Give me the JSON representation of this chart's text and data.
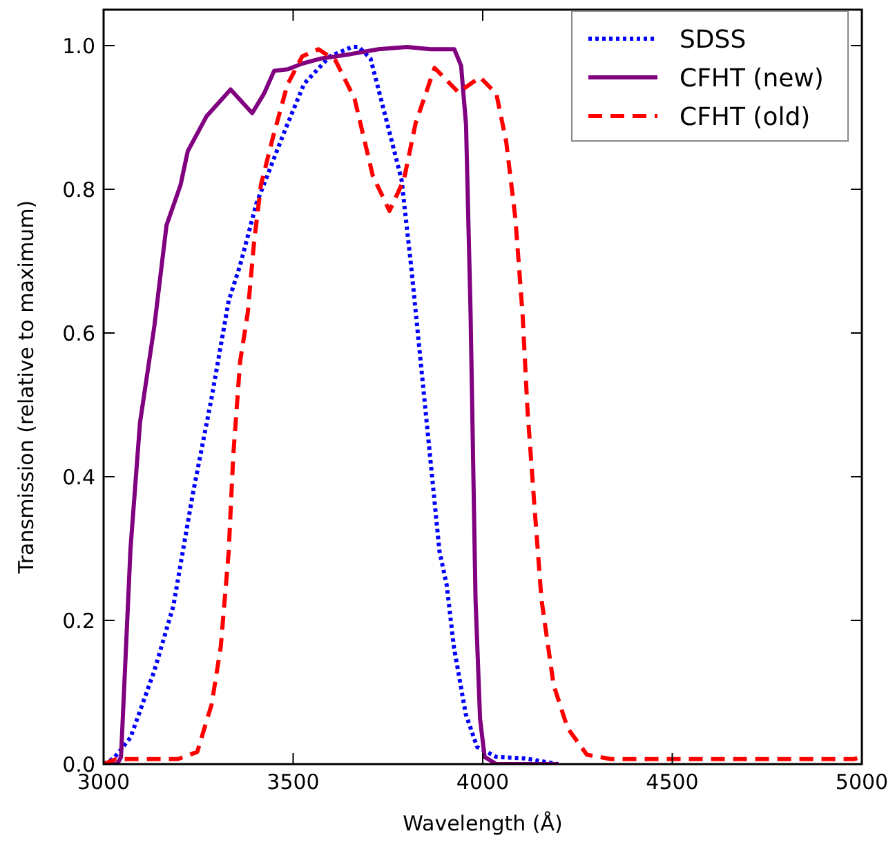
{
  "chart_data": {
    "type": "line",
    "xlabel": "Wavelength (Å)",
    "ylabel": "Transmission (relative to maximum)",
    "xlim": [
      3000,
      5000
    ],
    "ylim": [
      0,
      1.05
    ],
    "xticks": [
      3000,
      3500,
      4000,
      4500,
      5000
    ],
    "yticks": [
      {
        "value": 0,
        "label": "0.0"
      },
      {
        "value": 0.2,
        "label": "0.2"
      },
      {
        "value": 0.4,
        "label": "0.4"
      },
      {
        "value": 0.6,
        "label": "0.6"
      },
      {
        "value": 0.8,
        "label": "0.8"
      },
      {
        "value": 1,
        "label": "1.0"
      }
    ],
    "grid": false,
    "legend": "top right",
    "series": [
      {
        "name": "SDSS",
        "color": "#0000ff",
        "line_style": "dotted",
        "x": [
          3000,
          3027,
          3071,
          3134,
          3184,
          3235,
          3285,
          3330,
          3360,
          3403,
          3479,
          3529,
          3597,
          3654,
          3673,
          3704,
          3748,
          3786,
          3811,
          3836,
          3861,
          3886,
          3905,
          3924,
          3955,
          3985,
          4036,
          4111,
          4199
        ],
        "values": [
          0,
          0.008,
          0.037,
          0.13,
          0.22,
          0.375,
          0.51,
          0.645,
          0.694,
          0.78,
          0.883,
          0.947,
          0.985,
          0.998,
          0.998,
          0.982,
          0.892,
          0.813,
          0.694,
          0.562,
          0.429,
          0.296,
          0.249,
          0.163,
          0.07,
          0.024,
          0.01,
          0.008,
          0
        ]
      },
      {
        "name": "CFHT (new)",
        "color": "#800080",
        "line_style": "solid",
        "x": [
          3000,
          3036,
          3046,
          3071,
          3096,
          3134,
          3166,
          3203,
          3222,
          3272,
          3335,
          3392,
          3423,
          3450,
          3486,
          3524,
          3574,
          3650,
          3725,
          3800,
          3862,
          3925,
          3943,
          3956,
          3968,
          3981,
          3993,
          4005,
          4036,
          4200
        ],
        "values": [
          0,
          0,
          0.01,
          0.3,
          0.475,
          0.61,
          0.75,
          0.806,
          0.853,
          0.902,
          0.939,
          0.906,
          0.933,
          0.965,
          0.967,
          0.975,
          0.982,
          0.988,
          0.995,
          0.998,
          0.995,
          0.995,
          0.972,
          0.89,
          0.627,
          0.23,
          0.063,
          0.01,
          0,
          0
        ]
      },
      {
        "name": "CFHT (old)",
        "color": "#ff0000",
        "line_style": "dashed",
        "x": [
          3000,
          3033,
          3196,
          3247,
          3285,
          3309,
          3330,
          3342,
          3360,
          3380,
          3397,
          3415,
          3447,
          3485,
          3524,
          3567,
          3612,
          3662,
          3710,
          3754,
          3792,
          3823,
          3873,
          3936,
          3993,
          4036,
          4062,
          4086,
          4105,
          4118,
          4136,
          4155,
          4187,
          4224,
          4275,
          4338,
          4980,
          5000
        ],
        "values": [
          0,
          0.007,
          0.007,
          0.017,
          0.083,
          0.163,
          0.296,
          0.429,
          0.56,
          0.627,
          0.727,
          0.806,
          0.873,
          0.946,
          0.985,
          0.995,
          0.979,
          0.926,
          0.819,
          0.77,
          0.813,
          0.892,
          0.969,
          0.935,
          0.956,
          0.933,
          0.866,
          0.76,
          0.627,
          0.494,
          0.362,
          0.229,
          0.11,
          0.05,
          0.013,
          0.007,
          0.007,
          0.01
        ]
      }
    ]
  }
}
